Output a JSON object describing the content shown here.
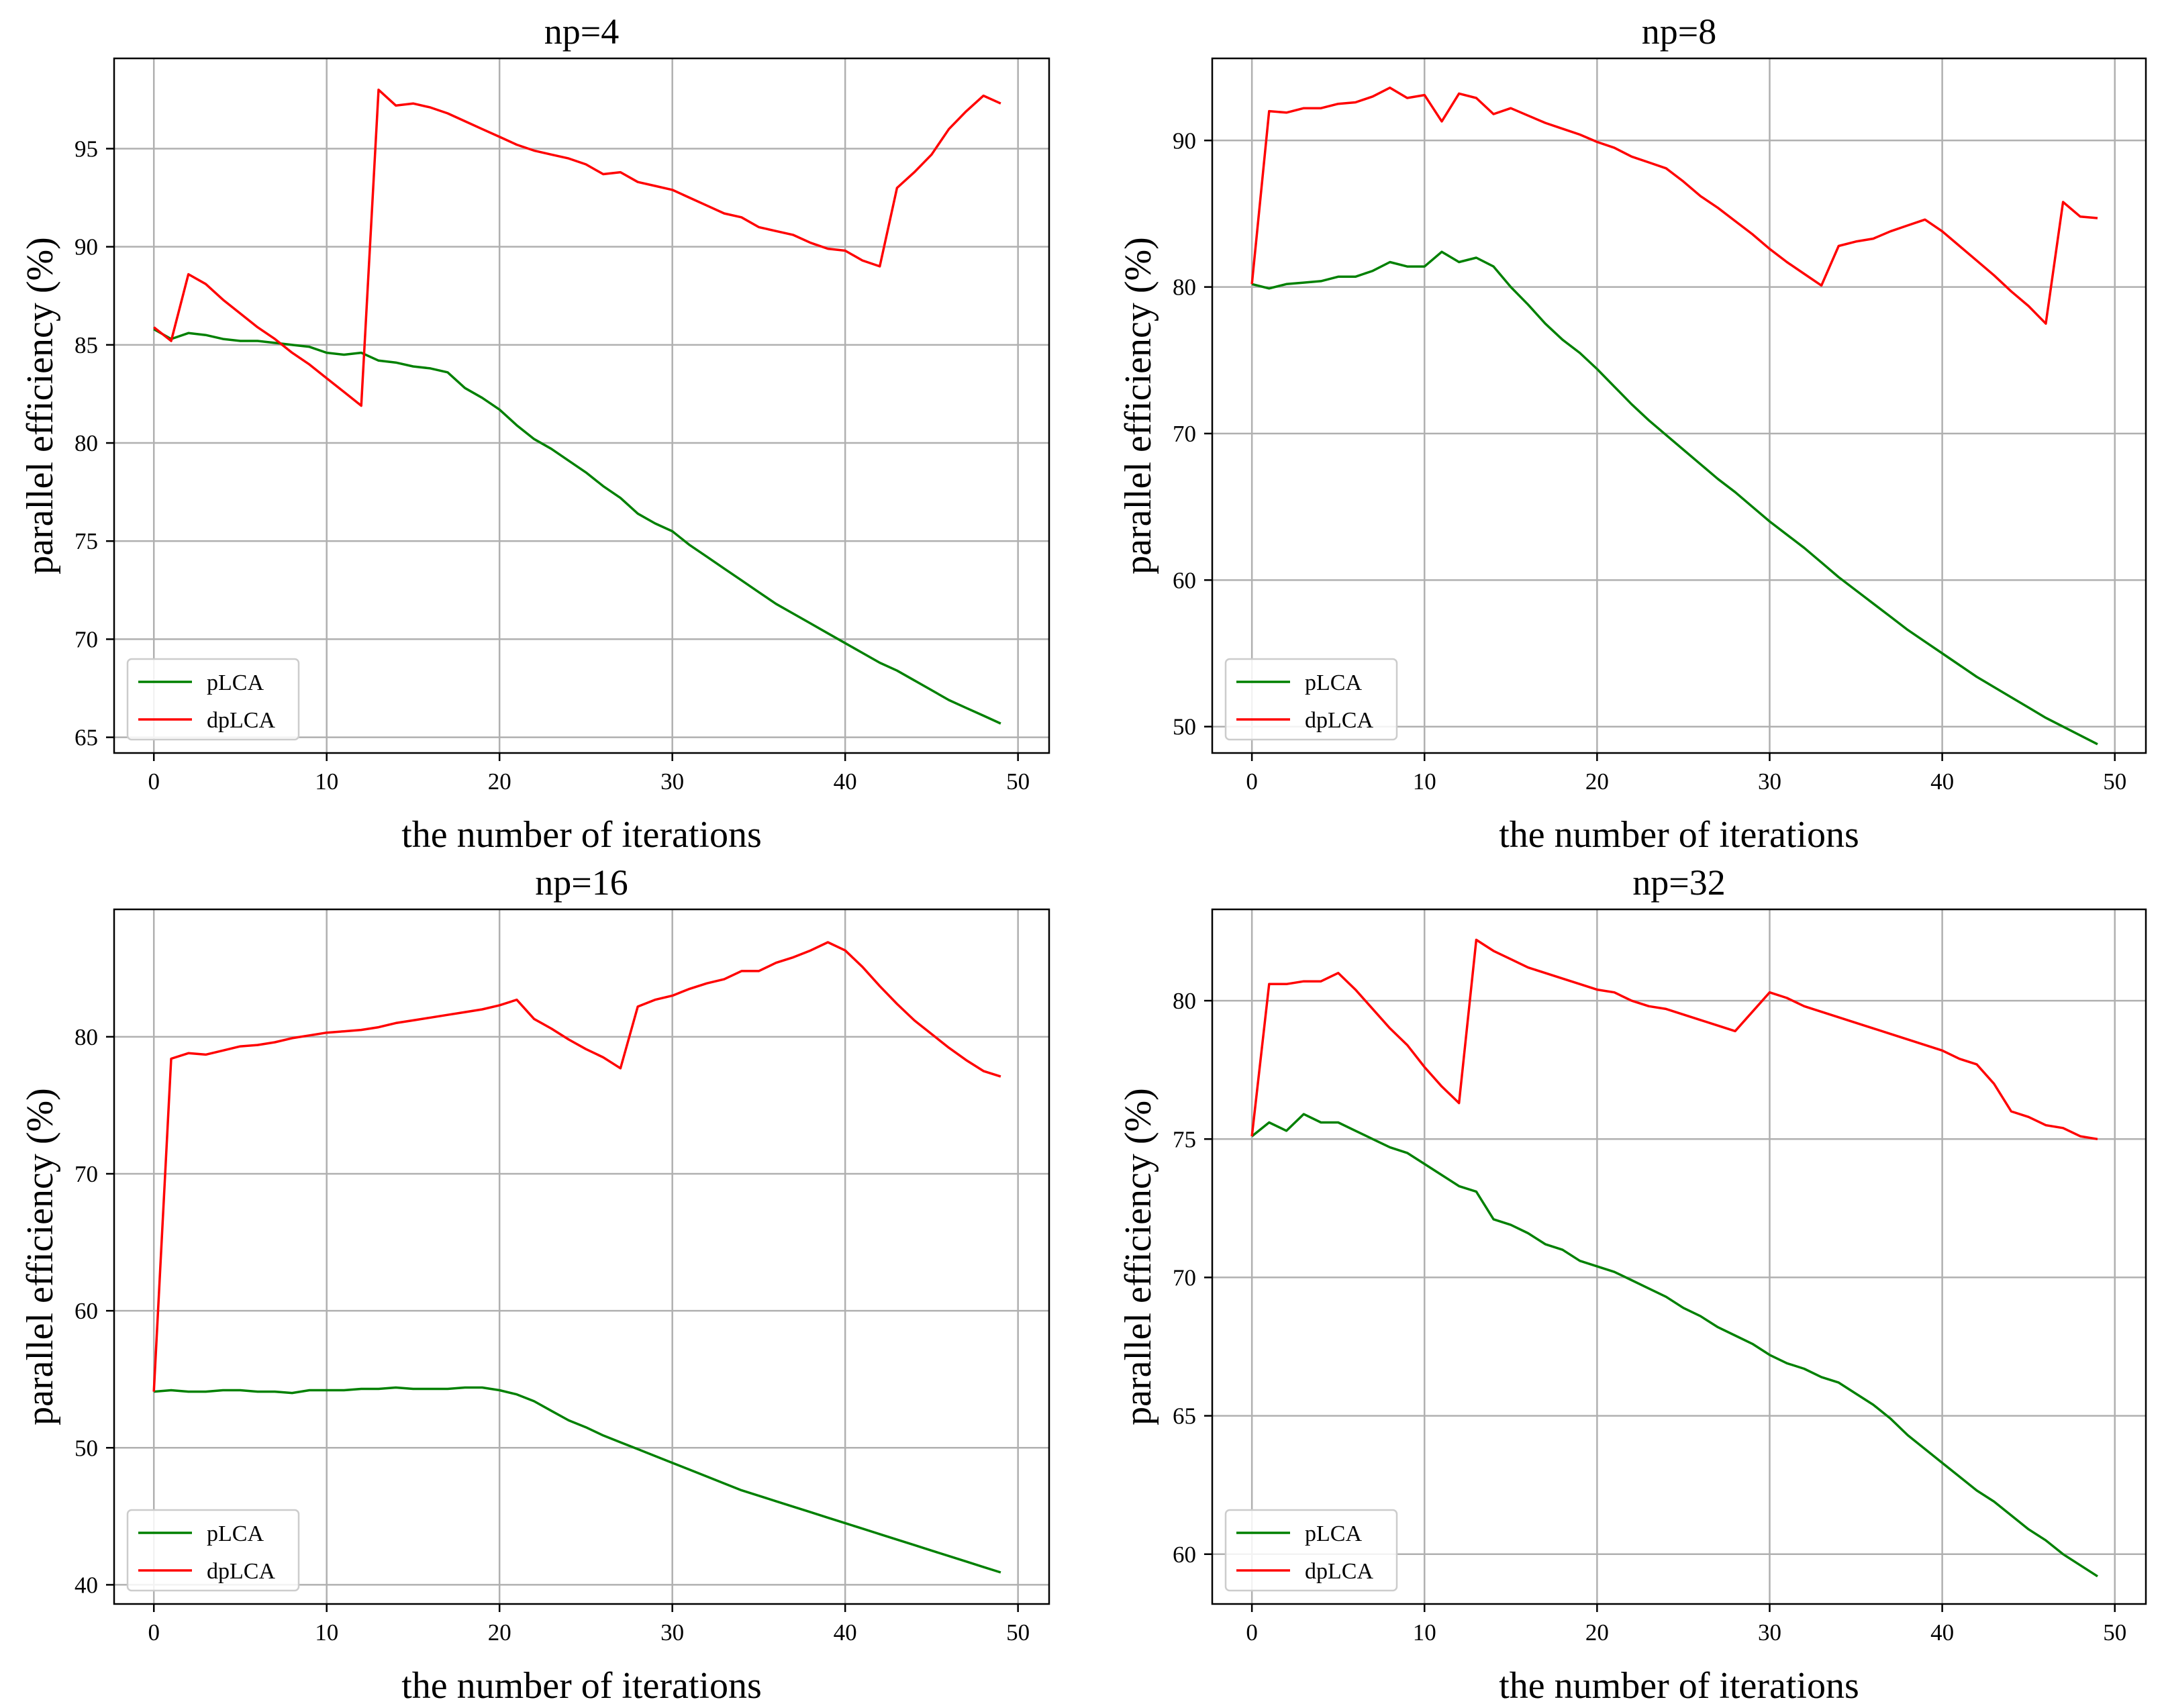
{
  "colors": {
    "pLCA": "#008000",
    "dpLCA": "#ff0000",
    "grid": "#b0b0b0",
    "axes": "#000000",
    "legend_border": "#cccccc"
  },
  "chart_data": [
    {
      "type": "line",
      "title": "np=4",
      "xlabel": "the number of iterations",
      "ylabel": "parallel efficiency (%)",
      "grid": true,
      "legend": "lower-left",
      "xlim": [
        -2.3,
        51.8
      ],
      "ylim": [
        64.2,
        99.6
      ],
      "xticks": [
        "0",
        "10",
        "20",
        "30",
        "40",
        "50"
      ],
      "yticks": [
        "65",
        "70",
        "75",
        "80",
        "85",
        "90",
        "95"
      ],
      "series": [
        {
          "name": "pLCA",
          "color": "#008000",
          "values": [
            85.8,
            85.3,
            85.6,
            85.5,
            85.3,
            85.2,
            85.2,
            85.1,
            85.0,
            84.9,
            84.6,
            84.5,
            84.6,
            84.2,
            84.1,
            83.9,
            83.8,
            83.6,
            82.8,
            82.3,
            81.7,
            80.9,
            80.2,
            79.7,
            79.1,
            78.5,
            77.8,
            77.2,
            76.4,
            75.9,
            75.5,
            74.8,
            74.2,
            73.6,
            73.0,
            72.4,
            71.8,
            71.3,
            70.8,
            70.3,
            69.8,
            69.3,
            68.8,
            68.4,
            67.9,
            67.4,
            66.9,
            66.5,
            66.1,
            65.7
          ]
        },
        {
          "name": "dpLCA",
          "color": "#ff0000",
          "values": [
            85.9,
            85.2,
            88.6,
            88.1,
            87.3,
            86.6,
            85.9,
            85.3,
            84.6,
            84.0,
            83.3,
            82.6,
            81.9,
            98.0,
            97.2,
            97.3,
            97.1,
            96.8,
            96.4,
            96.0,
            95.6,
            95.2,
            94.9,
            94.7,
            94.5,
            94.2,
            93.7,
            93.8,
            93.3,
            93.1,
            92.9,
            92.5,
            92.1,
            91.7,
            91.5,
            91.0,
            90.8,
            90.6,
            90.2,
            89.9,
            89.8,
            89.3,
            89.0,
            93.0,
            93.8,
            94.7,
            96.0,
            96.9,
            97.7,
            97.3
          ]
        }
      ]
    },
    {
      "type": "line",
      "title": "np=8",
      "xlabel": "the number of iterations",
      "ylabel": "parallel efficiency (%)",
      "grid": true,
      "legend": "lower-left",
      "xlim": [
        -2.3,
        51.8
      ],
      "ylim": [
        48.2,
        95.6
      ],
      "xticks": [
        "0",
        "10",
        "20",
        "30",
        "40",
        "50"
      ],
      "yticks": [
        "50",
        "60",
        "70",
        "80",
        "90"
      ],
      "series": [
        {
          "name": "pLCA",
          "color": "#008000",
          "values": [
            80.2,
            79.9,
            80.2,
            80.3,
            80.4,
            80.7,
            80.7,
            81.1,
            81.7,
            81.4,
            81.4,
            82.4,
            81.7,
            82.0,
            81.4,
            80.0,
            78.8,
            77.5,
            76.4,
            75.5,
            74.4,
            73.2,
            72.0,
            70.9,
            69.9,
            68.9,
            67.9,
            66.9,
            66.0,
            65.0,
            64.0,
            63.1,
            62.2,
            61.2,
            60.2,
            59.3,
            58.4,
            57.5,
            56.6,
            55.8,
            55.0,
            54.2,
            53.4,
            52.7,
            52.0,
            51.3,
            50.6,
            50.0,
            49.4,
            48.8
          ]
        },
        {
          "name": "dpLCA",
          "color": "#ff0000",
          "values": [
            80.2,
            92.0,
            91.9,
            92.2,
            92.2,
            92.5,
            92.6,
            93.0,
            93.6,
            92.9,
            93.1,
            91.3,
            93.2,
            92.9,
            91.8,
            92.2,
            91.7,
            91.2,
            90.8,
            90.4,
            89.9,
            89.5,
            88.9,
            88.5,
            88.1,
            87.2,
            86.2,
            85.4,
            84.5,
            83.6,
            82.6,
            81.7,
            80.9,
            80.1,
            82.8,
            83.1,
            83.3,
            83.8,
            84.2,
            84.6,
            83.8,
            82.8,
            81.8,
            80.8,
            79.7,
            78.7,
            77.5,
            85.8,
            84.8,
            84.7
          ]
        }
      ]
    },
    {
      "type": "line",
      "title": "np=16",
      "xlabel": "the number of iterations",
      "ylabel": "parallel efficiency (%)",
      "grid": true,
      "legend": "lower-left",
      "xlim": [
        -2.3,
        51.8
      ],
      "ylim": [
        38.6,
        89.3
      ],
      "xticks": [
        "0",
        "10",
        "20",
        "30",
        "40",
        "50"
      ],
      "yticks": [
        "40",
        "50",
        "60",
        "70",
        "80"
      ],
      "series": [
        {
          "name": "pLCA",
          "color": "#008000",
          "values": [
            54.1,
            54.2,
            54.1,
            54.1,
            54.2,
            54.2,
            54.1,
            54.1,
            54.0,
            54.2,
            54.2,
            54.2,
            54.3,
            54.3,
            54.4,
            54.3,
            54.3,
            54.3,
            54.4,
            54.4,
            54.2,
            53.9,
            53.4,
            52.7,
            52.0,
            51.5,
            50.9,
            50.4,
            49.9,
            49.4,
            48.9,
            48.4,
            47.9,
            47.4,
            46.9,
            46.5,
            46.1,
            45.7,
            45.3,
            44.9,
            44.5,
            44.1,
            43.7,
            43.3,
            42.9,
            42.5,
            42.1,
            41.7,
            41.3,
            40.9
          ]
        },
        {
          "name": "dpLCA",
          "color": "#ff0000",
          "values": [
            54.1,
            78.4,
            78.8,
            78.7,
            79.0,
            79.3,
            79.4,
            79.6,
            79.9,
            80.1,
            80.3,
            80.4,
            80.5,
            80.7,
            81.0,
            81.2,
            81.4,
            81.6,
            81.8,
            82.0,
            82.3,
            82.7,
            81.3,
            80.6,
            79.8,
            79.1,
            78.5,
            77.7,
            82.2,
            82.7,
            83.0,
            83.5,
            83.9,
            84.2,
            84.8,
            84.8,
            85.4,
            85.8,
            86.3,
            86.9,
            86.3,
            85.1,
            83.7,
            82.4,
            81.2,
            80.2,
            79.2,
            78.3,
            77.5,
            77.1
          ]
        }
      ]
    },
    {
      "type": "line",
      "title": "np=32",
      "xlabel": "the number of iterations",
      "ylabel": "parallel efficiency (%)",
      "grid": true,
      "legend": "lower-left",
      "xlim": [
        -2.3,
        51.8
      ],
      "ylim": [
        58.2,
        83.3
      ],
      "xticks": [
        "0",
        "10",
        "20",
        "30",
        "40",
        "50"
      ],
      "yticks": [
        "60",
        "65",
        "70",
        "75",
        "80"
      ],
      "series": [
        {
          "name": "pLCA",
          "color": "#008000",
          "values": [
            75.1,
            75.6,
            75.3,
            75.9,
            75.6,
            75.6,
            75.3,
            75.0,
            74.7,
            74.5,
            74.1,
            73.7,
            73.3,
            73.1,
            72.1,
            71.9,
            71.6,
            71.2,
            71.0,
            70.6,
            70.4,
            70.2,
            69.9,
            69.6,
            69.3,
            68.9,
            68.6,
            68.2,
            67.9,
            67.6,
            67.2,
            66.9,
            66.7,
            66.4,
            66.2,
            65.8,
            65.4,
            64.9,
            64.3,
            63.8,
            63.3,
            62.8,
            62.3,
            61.9,
            61.4,
            60.9,
            60.5,
            60.0,
            59.6,
            59.2
          ]
        },
        {
          "name": "dpLCA",
          "color": "#ff0000",
          "values": [
            75.1,
            80.6,
            80.6,
            80.7,
            80.7,
            81.0,
            80.4,
            79.7,
            79.0,
            78.4,
            77.6,
            76.9,
            76.3,
            82.2,
            81.8,
            81.5,
            81.2,
            81.0,
            80.8,
            80.6,
            80.4,
            80.3,
            80.0,
            79.8,
            79.7,
            79.5,
            79.3,
            79.1,
            78.9,
            79.6,
            80.3,
            80.1,
            79.8,
            79.6,
            79.4,
            79.2,
            79.0,
            78.8,
            78.6,
            78.4,
            78.2,
            77.9,
            77.7,
            77.0,
            76.0,
            75.8,
            75.5,
            75.4,
            75.1,
            75.0
          ]
        }
      ]
    }
  ]
}
